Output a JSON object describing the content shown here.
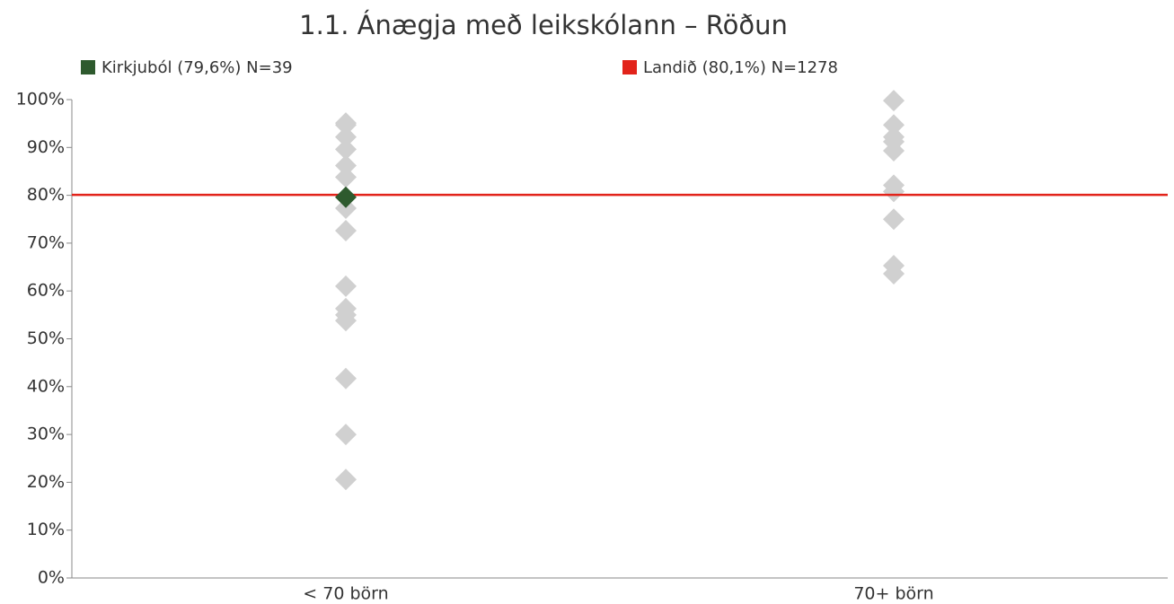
{
  "chart_data": {
    "type": "strip",
    "title": "1.1. Ánægja með leikskólann – Röðun",
    "categories": [
      "< 70 börn",
      "70+ börn"
    ],
    "others": {
      "color": "#d0d0d0",
      "values": [
        [
          95.1,
          94.7,
          92.2,
          89.6,
          86.2,
          83.8,
          77.3,
          72.6,
          61.0,
          56.3,
          55.0,
          53.8,
          41.7,
          30.0,
          20.6
        ],
        [
          99.8,
          94.7,
          92.2,
          91.2,
          89.3,
          82.1,
          80.8,
          75.0,
          65.3,
          63.6
        ]
      ]
    },
    "highlight": {
      "name": "Kirkjuból (79,6%) N=39",
      "color": "#2e5a2e",
      "values": [
        79.6,
        null
      ]
    },
    "reference": {
      "name": "Landið (80,1%) N=1278",
      "color": "#e2231a",
      "value": 80.1
    },
    "ylim": [
      0,
      100
    ],
    "yticks": [
      {
        "value": 0,
        "label": "0%"
      },
      {
        "value": 10,
        "label": "10%"
      },
      {
        "value": 20,
        "label": "20%"
      },
      {
        "value": 30,
        "label": "30%"
      },
      {
        "value": 40,
        "label": "40%"
      },
      {
        "value": 50,
        "label": "50%"
      },
      {
        "value": 60,
        "label": "60%"
      },
      {
        "value": 70,
        "label": "70%"
      },
      {
        "value": 80,
        "label": "80%"
      },
      {
        "value": 90,
        "label": "90%"
      },
      {
        "value": 100,
        "label": "100%"
      }
    ]
  }
}
